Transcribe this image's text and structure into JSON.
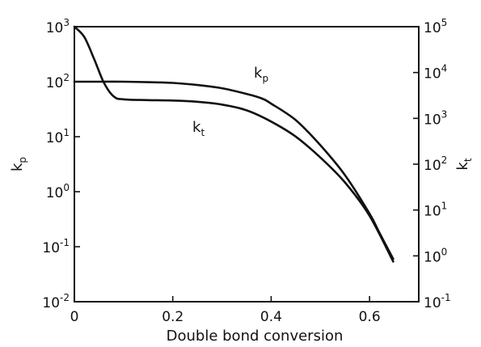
{
  "chart_data": {
    "type": "line",
    "xlabel": "Double bond conversion",
    "ylabel_left": "k",
    "ylabel_left_sub": "p",
    "ylabel_right": "k",
    "ylabel_right_sub": "t",
    "xlim": [
      0,
      0.7
    ],
    "x_ticks": [
      {
        "value": 0,
        "label": "0"
      },
      {
        "value": 0.2,
        "label": "0.2"
      },
      {
        "value": 0.4,
        "label": "0.4"
      },
      {
        "value": 0.6,
        "label": "0.6"
      }
    ],
    "y_left": {
      "scale": "log",
      "ylim": [
        0.01,
        1000
      ],
      "ticks": [
        {
          "value": 0.01,
          "base": "10",
          "exp": "-2"
        },
        {
          "value": 0.1,
          "base": "10",
          "exp": "-1"
        },
        {
          "value": 1,
          "base": "10",
          "exp": "0"
        },
        {
          "value": 10,
          "base": "10",
          "exp": "1"
        },
        {
          "value": 100,
          "base": "10",
          "exp": "2"
        },
        {
          "value": 1000,
          "base": "10",
          "exp": "3"
        }
      ]
    },
    "y_right": {
      "scale": "log",
      "ylim": [
        0.1,
        100000
      ],
      "ticks": [
        {
          "value": 0.1,
          "base": "10",
          "exp": "-1"
        },
        {
          "value": 1,
          "base": "10",
          "exp": "0"
        },
        {
          "value": 10,
          "base": "10",
          "exp": "1"
        },
        {
          "value": 100,
          "base": "10",
          "exp": "2"
        },
        {
          "value": 1000,
          "base": "10",
          "exp": "3"
        },
        {
          "value": 10000,
          "base": "10",
          "exp": "4"
        },
        {
          "value": 100000,
          "base": "10",
          "exp": "5"
        }
      ]
    },
    "grid": false,
    "series": [
      {
        "name": "k_p",
        "label_main": "k",
        "label_sub": "p",
        "axis": "left",
        "x": [
          0,
          0.05,
          0.1,
          0.15,
          0.2,
          0.25,
          0.3,
          0.35,
          0.38,
          0.4,
          0.45,
          0.5,
          0.55,
          0.6,
          0.62,
          0.648
        ],
        "y": [
          100,
          100,
          100,
          98,
          95,
          87,
          76,
          60,
          50,
          40,
          20,
          7,
          2,
          0.4,
          0.18,
          0.06
        ]
      },
      {
        "name": "k_t",
        "label_main": "k",
        "label_sub": "t",
        "axis": "right",
        "x": [
          0,
          0.02,
          0.04,
          0.06,
          0.08,
          0.1,
          0.15,
          0.2,
          0.25,
          0.3,
          0.35,
          0.4,
          0.45,
          0.5,
          0.55,
          0.6,
          0.648
        ],
        "y": [
          100000,
          60000,
          20000,
          6000,
          3000,
          2600,
          2500,
          2450,
          2300,
          2000,
          1500,
          850,
          400,
          140,
          40,
          7.5,
          0.75
        ]
      }
    ]
  }
}
